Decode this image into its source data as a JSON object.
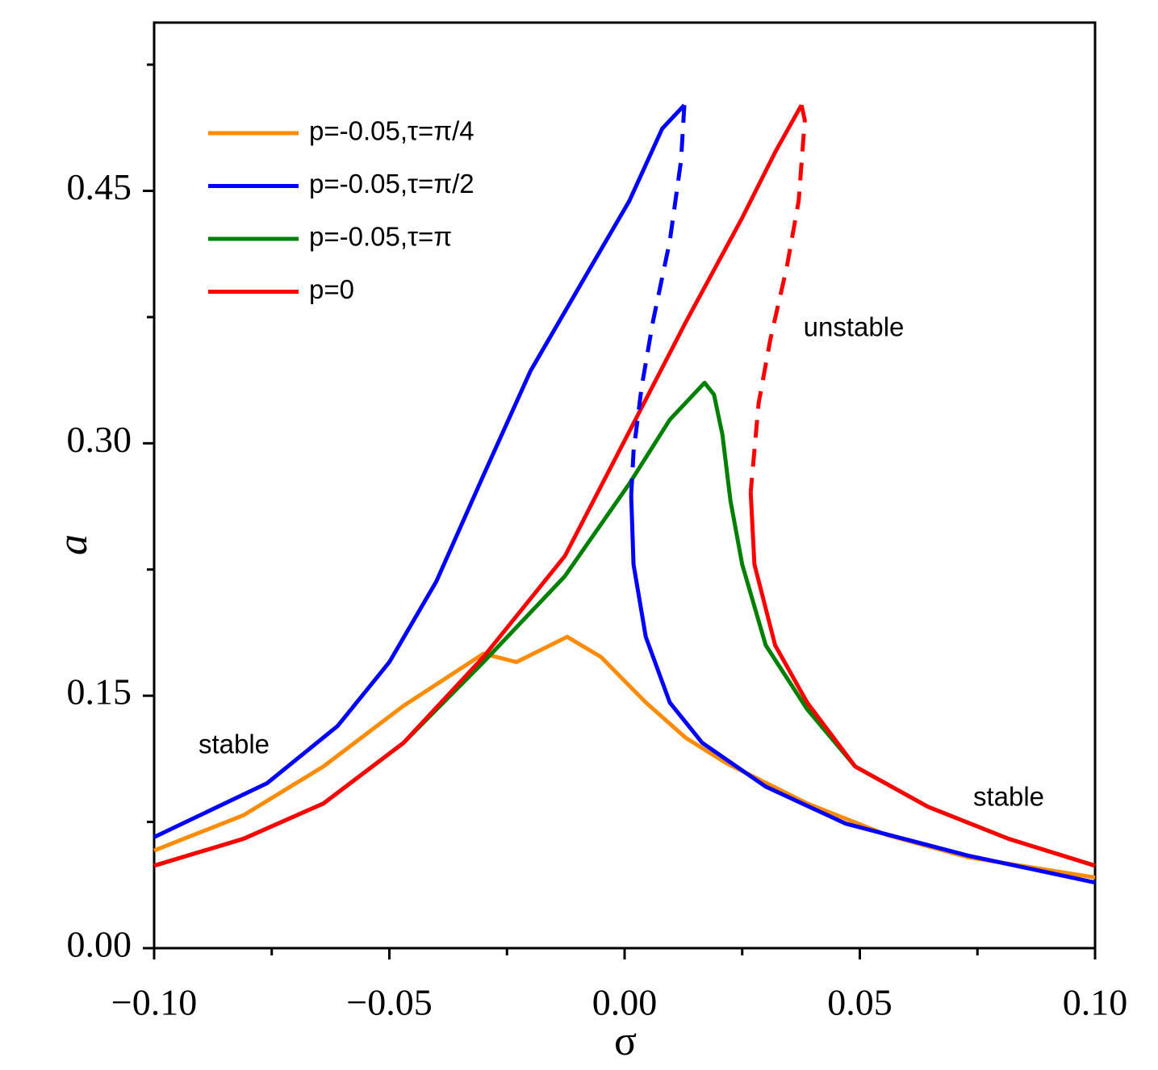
{
  "chart_data": {
    "type": "line",
    "xlabel": "σ",
    "ylabel": "a",
    "xlim": [
      -0.1,
      0.1
    ],
    "ylim": [
      0,
      0.55
    ],
    "xticks": [
      {
        "value": -0.1,
        "label": "−0.10"
      },
      {
        "value": -0.05,
        "label": "−0.05"
      },
      {
        "value": 0,
        "label": "0.00"
      },
      {
        "value": 0.05,
        "label": "0.05"
      },
      {
        "value": 0.1,
        "label": "0.10"
      }
    ],
    "yticks": [
      {
        "value": 0,
        "label": "0.00"
      },
      {
        "value": 0.15,
        "label": "0.15"
      },
      {
        "value": 0.3,
        "label": "0.30"
      },
      {
        "value": 0.45,
        "label": "0.45"
      }
    ],
    "xminorticks": [
      -0.075,
      -0.025,
      0.025,
      0.075
    ],
    "yminorticks": [
      0.075,
      0.225,
      0.375,
      0.525
    ],
    "grid": false,
    "legend": "upper left",
    "annotations": [
      "stable",
      "unstable",
      "stable"
    ],
    "series": [
      {
        "name": "p=-0.05,τ=π/4",
        "color": "#ff8c00",
        "dashed": false,
        "x": [
          -0.1,
          -0.081,
          -0.064,
          -0.047,
          -0.03,
          -0.023,
          -0.0122,
          -0.005,
          0.0045,
          0.013,
          0.0216,
          0.0388,
          0.056,
          0.073,
          0.1
        ],
        "values": [
          0.058,
          0.079,
          0.108,
          0.144,
          0.175,
          0.17,
          0.185,
          0.173,
          0.146,
          0.125,
          0.11,
          0.086,
          0.067,
          0.054,
          0.042
        ]
      },
      {
        "name": "p=-0.05,τ=π/2",
        "color": "#0000ff",
        "dashed": false,
        "x": [
          -0.1,
          -0.076,
          -0.061,
          -0.05,
          -0.04,
          -0.03,
          -0.02,
          -0.009,
          0.001,
          0.008,
          0.0127
        ],
        "values": [
          0.066,
          0.098,
          0.132,
          0.17,
          0.218,
          0.281,
          0.343,
          0.396,
          0.444,
          0.487,
          0.501
        ]
      },
      {
        "name": "p=-0.05,τ=π",
        "color": "#008000",
        "dashed": false,
        "x": [
          -0.1,
          -0.081,
          -0.064,
          -0.047,
          -0.03,
          -0.0127,
          0.001,
          0.0096,
          0.017,
          0.019,
          0.0208,
          0.0225,
          0.025,
          0.03,
          0.0388,
          0.049,
          0.0645,
          0.0816,
          0.1
        ],
        "values": [
          0.049,
          0.065,
          0.086,
          0.122,
          0.17,
          0.221,
          0.276,
          0.314,
          0.336,
          0.329,
          0.305,
          0.266,
          0.228,
          0.18,
          0.142,
          0.108,
          0.084,
          0.065,
          0.049
        ]
      },
      {
        "name": "p=0",
        "color": "#ff0000",
        "dashed": false,
        "x": [
          -0.1,
          -0.081,
          -0.064,
          -0.047,
          -0.03,
          -0.0127,
          0.001,
          0.013,
          0.025,
          0.032,
          0.0376
        ],
        "values": [
          0.049,
          0.065,
          0.086,
          0.122,
          0.173,
          0.233,
          0.307,
          0.372,
          0.434,
          0.473,
          0.501
        ]
      },
      {
        "color": "#0000ff",
        "dashed": true,
        "x": [
          0.0127,
          0.012,
          0.0096,
          0.006,
          0.0036,
          0.0019,
          0.0014
        ],
        "values": [
          0.501,
          0.468,
          0.42,
          0.372,
          0.333,
          0.295,
          0.269
        ]
      },
      {
        "color": "#0000ff",
        "dashed": false,
        "x": [
          0.0014,
          0.0019,
          0.0045,
          0.0096,
          0.0165,
          0.03,
          0.047,
          0.073,
          0.1
        ],
        "values": [
          0.269,
          0.228,
          0.185,
          0.146,
          0.122,
          0.096,
          0.074,
          0.055,
          0.039
        ]
      },
      {
        "color": "#ff0000",
        "dashed": true,
        "x": [
          0.0376,
          0.0383,
          0.037,
          0.0345,
          0.031,
          0.0285,
          0.0268
        ],
        "values": [
          0.501,
          0.492,
          0.444,
          0.405,
          0.362,
          0.324,
          0.271
        ]
      },
      {
        "color": "#ff0000",
        "dashed": false,
        "x": [
          0.0268,
          0.0276,
          0.032,
          0.0388,
          0.049,
          0.0645,
          0.0816,
          0.1
        ],
        "values": [
          0.271,
          0.228,
          0.18,
          0.146,
          0.108,
          0.084,
          0.065,
          0.049
        ]
      }
    ]
  }
}
